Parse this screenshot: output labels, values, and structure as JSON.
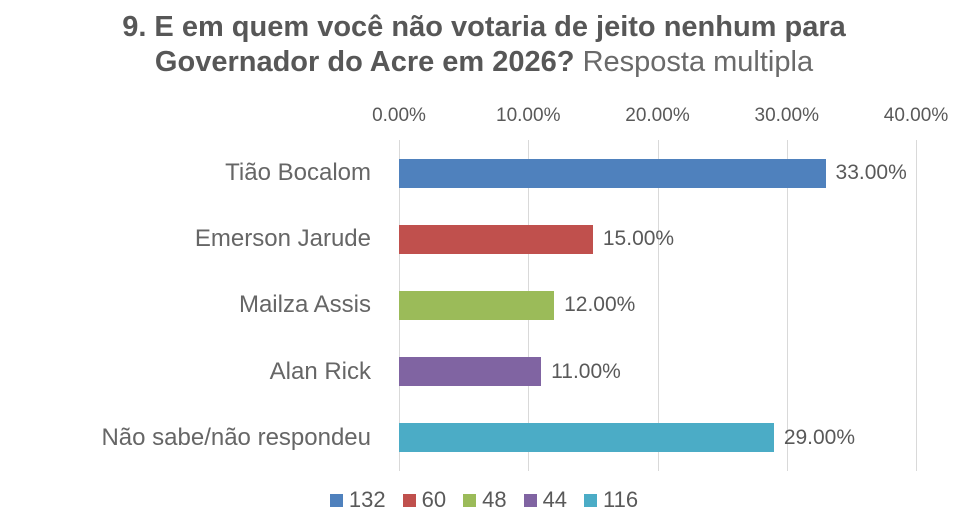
{
  "title": {
    "bold": "9. E em quem você não votaria de jeito nenhum para Governador do Acre em 2026?",
    "regular": " Resposta multipla"
  },
  "chart_data": {
    "type": "bar",
    "orientation": "horizontal",
    "title": "9. E em quem você não votaria de jeito nenhum para Governador do Acre em 2026? Resposta multipla",
    "categories": [
      "Tião Bocalom",
      "Emerson Jarude",
      "Mailza Assis",
      "Alan Rick",
      "Não sabe/não respondeu"
    ],
    "values": [
      33,
      15,
      12,
      11,
      29
    ],
    "value_labels": [
      "33.00%",
      "15.00%",
      "12.00%",
      "11.00%",
      "29.00%"
    ],
    "counts": [
      132,
      60,
      48,
      44,
      116
    ],
    "series_colors": [
      "#4F81BD",
      "#C0504D",
      "#9BBB59",
      "#8064A2",
      "#4BACC6"
    ],
    "xlim": [
      0,
      40
    ],
    "x_ticks": [
      "0.00%",
      "10.00%",
      "20.00%",
      "30.00%",
      "40.00%"
    ],
    "grid": true,
    "legend_position": "bottom",
    "legend_labels": [
      "132",
      "60",
      "48",
      "44",
      "116"
    ]
  },
  "colors": {
    "grid": "#d9d9d9",
    "axis_text": "#595959",
    "category_text": "#666666",
    "value_text": "#595959",
    "title_text": "#575757",
    "background": "#ffffff"
  }
}
